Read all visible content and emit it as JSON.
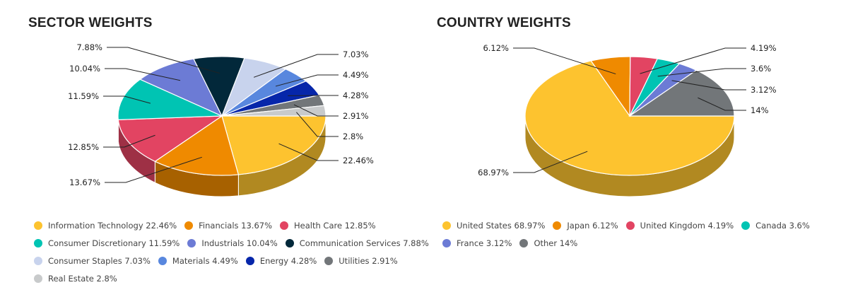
{
  "chart_data": [
    {
      "type": "pie",
      "title": "SECTOR WEIGHTS",
      "categories": [
        "Information Technology",
        "Financials",
        "Health Care",
        "Consumer Discretionary",
        "Industrials",
        "Communication Services",
        "Consumer Staples",
        "Materials",
        "Energy",
        "Utilities",
        "Real Estate"
      ],
      "values": [
        22.46,
        13.67,
        12.85,
        11.59,
        10.04,
        7.88,
        7.03,
        4.49,
        4.28,
        2.91,
        2.8
      ],
      "labels": [
        "22.46%",
        "13.67%",
        "12.85%",
        "11.59%",
        "10.04%",
        "7.88%",
        "7.03%",
        "4.49%",
        "4.28%",
        "2.91%",
        "2.8%"
      ],
      "legend": [
        "Information Technology 22.46%",
        "Financials 13.67%",
        "Health Care 12.85%",
        "Consumer Discretionary 11.59%",
        "Industrials 10.04%",
        "Communication Services 7.88%",
        "Consumer Staples 7.03%",
        "Materials 4.49%",
        "Energy 4.28%",
        "Utilities 2.91%",
        "Real Estate 2.8%"
      ],
      "colors": [
        "#fdc32f",
        "#ef8a00",
        "#e24462",
        "#00c4b3",
        "#6c7bd5",
        "#02283a",
        "#c8d3ed",
        "#5887de",
        "#0626aa",
        "#727679",
        "#c8cacb"
      ],
      "legend_placement": "bottom"
    },
    {
      "type": "pie",
      "title": "COUNTRY WEIGHTS",
      "categories": [
        "United States",
        "Japan",
        "United Kingdom",
        "Canada",
        "France",
        "Other"
      ],
      "values": [
        68.97,
        6.12,
        4.19,
        3.6,
        3.12,
        14
      ],
      "labels": [
        "68.97%",
        "6.12%",
        "4.19%",
        "3.6%",
        "3.12%",
        "14%"
      ],
      "legend": [
        "United States 68.97%",
        "Japan 6.12%",
        "United Kingdom 4.19%",
        "Canada 3.6%",
        "France 3.12%",
        "Other 14%"
      ],
      "colors": [
        "#fdc32f",
        "#ef8a00",
        "#e24462",
        "#00c4b3",
        "#6c7bd5",
        "#727679"
      ],
      "legend_placement": "bottom"
    }
  ]
}
